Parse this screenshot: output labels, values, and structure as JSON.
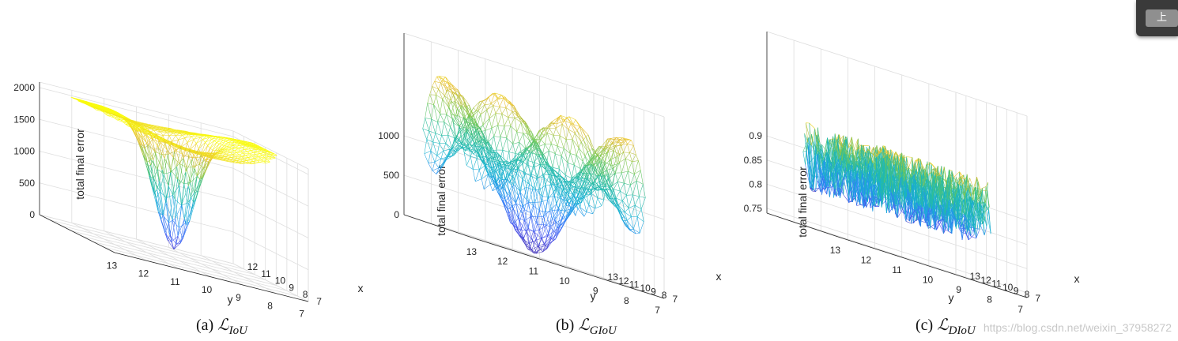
{
  "chart_data": [
    {
      "type": "surface",
      "id": "a",
      "caption_prefix": "(a) ",
      "caption_symbol": "ℒ",
      "caption_sub": "IoU",
      "zlabel": "total final error",
      "xlabel": "x",
      "ylabel": "y",
      "x_ticks": [
        "7",
        "8",
        "9",
        "10",
        "11",
        "12"
      ],
      "y_ticks": [
        "13",
        "12",
        "11",
        "10",
        "9",
        "8",
        "7"
      ],
      "z_ticks": [
        "0",
        "500",
        "1000",
        "1500",
        "2000"
      ],
      "zlim": [
        0,
        2000
      ],
      "shape": "bowl",
      "grid": true
    },
    {
      "type": "surface",
      "id": "b",
      "caption_prefix": "(b) ",
      "caption_symbol": "ℒ",
      "caption_sub": "GIoU",
      "zlabel": "total final error",
      "xlabel": "x",
      "ylabel": "y",
      "x_ticks": [
        "7",
        "8",
        "9",
        "10",
        "11",
        "12",
        "13"
      ],
      "y_ticks": [
        "13",
        "12",
        "11",
        "10",
        "9",
        "8",
        "7"
      ],
      "z_ticks": [
        "0",
        "500",
        "1000"
      ],
      "zlim": [
        0,
        1100
      ],
      "shape": "saddle",
      "grid": true
    },
    {
      "type": "surface",
      "id": "c",
      "caption_prefix": "(c) ",
      "caption_symbol": "ℒ",
      "caption_sub": "DIoU",
      "zlabel": "total final error",
      "xlabel": "x",
      "ylabel": "y",
      "x_ticks": [
        "7",
        "8",
        "9",
        "10",
        "11",
        "12",
        "13"
      ],
      "y_ticks": [
        "13",
        "12",
        "11",
        "10",
        "9",
        "8",
        "7"
      ],
      "z_ticks": [
        "0.75",
        "0.8",
        "0.85",
        "0.9"
      ],
      "zlim": [
        0.74,
        0.92
      ],
      "shape": "noise",
      "grid": true
    }
  ],
  "watermark": "https://blog.csdn.net/weixin_37958272",
  "popup": {
    "button_label": "上"
  },
  "colors": {
    "low": "#3e26a8",
    "mid": "#26bcb8",
    "high": "#f9fb0e"
  }
}
